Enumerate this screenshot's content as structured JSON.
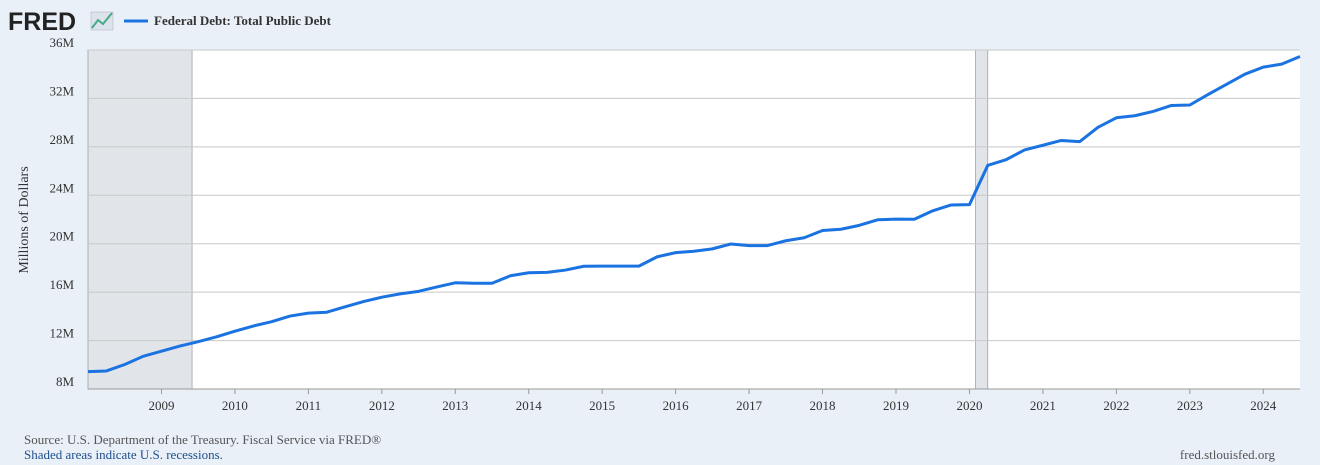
{
  "brand": "FRED",
  "chart_data": {
    "type": "line",
    "ylabel": "Millions of Dollars",
    "x": [
      "2008-Q1",
      "2008-Q2",
      "2008-Q3",
      "2008-Q4",
      "2009-Q1",
      "2009-Q2",
      "2009-Q3",
      "2009-Q4",
      "2010-Q1",
      "2010-Q2",
      "2010-Q3",
      "2010-Q4",
      "2011-Q1",
      "2011-Q2",
      "2011-Q3",
      "2011-Q4",
      "2012-Q1",
      "2012-Q2",
      "2012-Q3",
      "2012-Q4",
      "2013-Q1",
      "2013-Q2",
      "2013-Q3",
      "2013-Q4",
      "2014-Q1",
      "2014-Q2",
      "2014-Q3",
      "2014-Q4",
      "2015-Q1",
      "2015-Q2",
      "2015-Q3",
      "2015-Q4",
      "2016-Q1",
      "2016-Q2",
      "2016-Q3",
      "2016-Q4",
      "2017-Q1",
      "2017-Q2",
      "2017-Q3",
      "2017-Q4",
      "2018-Q1",
      "2018-Q2",
      "2018-Q3",
      "2018-Q4",
      "2019-Q1",
      "2019-Q2",
      "2019-Q3",
      "2019-Q4",
      "2020-Q1",
      "2020-Q2",
      "2020-Q3",
      "2020-Q4",
      "2021-Q1",
      "2021-Q2",
      "2021-Q3",
      "2021-Q4",
      "2022-Q1",
      "2022-Q2",
      "2022-Q3",
      "2022-Q4",
      "2023-Q1",
      "2023-Q2",
      "2023-Q3",
      "2023-Q4",
      "2024-Q1",
      "2024-Q2",
      "2024-Q3"
    ],
    "series": [
      {
        "name": "Federal Debt: Total Public Debt",
        "color": "#1a73e0",
        "values": [
          9437609,
          9492006,
          10024724,
          10699805,
          11126941,
          11545275,
          11909829,
          12311350,
          12773123,
          13201790,
          13561623,
          14025215,
          14270109,
          14342806,
          14790340,
          15222940,
          15582079,
          15855530,
          16066241,
          16432730,
          16771408,
          16738184,
          16738184,
          17351971,
          17601227,
          17632606,
          17824071,
          18141444,
          18152056,
          18151998,
          18150618,
          18922179,
          19264939,
          19381591,
          19573445,
          19976827,
          19846418,
          19844554,
          20244900,
          20492874,
          21089643,
          21195070,
          21516058,
          21974096,
          22027880,
          22023283,
          22719402,
          23201380,
          23223813,
          26477174,
          26945391,
          27747798,
          28132570,
          28529436,
          28428919,
          29617215,
          30400960,
          30568582,
          30928912,
          31419689,
          31458438,
          32332274,
          33167334,
          34001493,
          34586533,
          34831634,
          35464674
        ]
      }
    ],
    "xlim": [
      "2008-Q1",
      "2024-Q3"
    ],
    "xticks": [
      2009,
      2010,
      2011,
      2012,
      2013,
      2014,
      2015,
      2016,
      2017,
      2018,
      2019,
      2020,
      2021,
      2022,
      2023,
      2024
    ],
    "ylim": [
      8000000,
      36000000
    ],
    "yticks": [
      {
        "value": 8000000,
        "label": "8M"
      },
      {
        "value": 12000000,
        "label": "12M"
      },
      {
        "value": 16000000,
        "label": "16M"
      },
      {
        "value": 20000000,
        "label": "20M"
      },
      {
        "value": 24000000,
        "label": "24M"
      },
      {
        "value": 28000000,
        "label": "28M"
      },
      {
        "value": 32000000,
        "label": "32M"
      },
      {
        "value": 36000000,
        "label": "36M"
      }
    ],
    "recessions": [
      [
        "2008-01",
        "2009-06"
      ],
      [
        "2020-02",
        "2020-04"
      ]
    ],
    "grid": true
  },
  "source": "Source: U.S. Department of the Treasury. Fiscal Service via FRED®",
  "note": "Shaded areas indicate U.S. recessions.",
  "site": "fred.stlouisfed.org"
}
